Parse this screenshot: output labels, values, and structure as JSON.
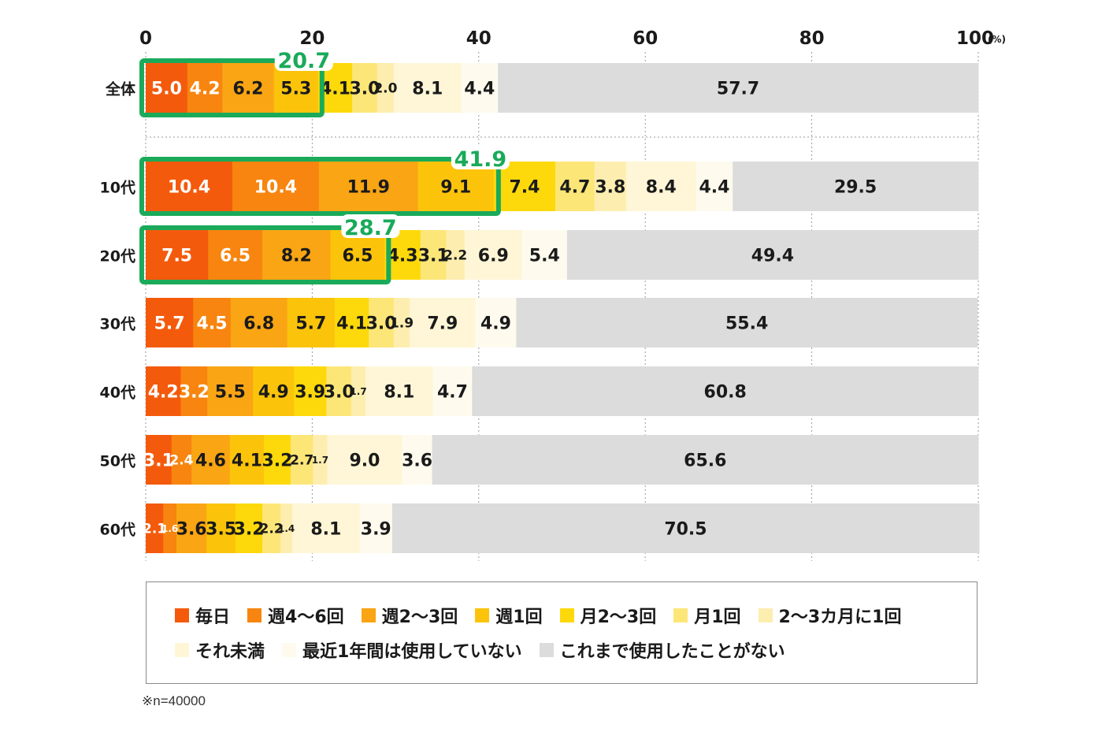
{
  "chart_data": {
    "type": "bar",
    "orientation": "horizontal",
    "stacked": true,
    "xlim": [
      0,
      100
    ],
    "x_ticks": [
      "0",
      "20",
      "40",
      "60",
      "80",
      "100"
    ],
    "x_unit": "(%)",
    "grid": true,
    "categories": [
      "全体",
      "10代",
      "20代",
      "30代",
      "40代",
      "50代",
      "60代"
    ],
    "series": [
      {
        "name": "毎日",
        "color": "#f45a0c",
        "values": [
          5.0,
          10.4,
          7.5,
          5.7,
          4.2,
          3.1,
          2.1
        ]
      },
      {
        "name": "週4～6回",
        "color": "#f7850f",
        "values": [
          4.2,
          10.4,
          6.5,
          4.5,
          3.2,
          2.4,
          1.6
        ]
      },
      {
        "name": "週2～3回",
        "color": "#f9a514",
        "values": [
          6.2,
          11.9,
          8.2,
          6.8,
          5.5,
          4.6,
          3.6
        ]
      },
      {
        "name": "週1回",
        "color": "#fbc40b",
        "values": [
          5.3,
          9.1,
          6.5,
          5.7,
          4.9,
          4.1,
          3.5
        ]
      },
      {
        "name": "月2～3回",
        "color": "#fdd90b",
        "values": [
          4.1,
          7.4,
          4.3,
          4.1,
          3.9,
          3.2,
          3.2
        ]
      },
      {
        "name": "月1回",
        "color": "#fde678",
        "values": [
          3.0,
          4.7,
          3.1,
          3.0,
          3.0,
          2.7,
          2.2
        ]
      },
      {
        "name": "2～3カ月に1回",
        "color": "#fdeeb0",
        "values": [
          2.0,
          3.8,
          2.2,
          1.9,
          1.7,
          1.7,
          1.4
        ]
      },
      {
        "name": "それ未満",
        "color": "#fef6d6",
        "values": [
          8.1,
          8.4,
          6.9,
          7.9,
          8.1,
          9.0,
          8.1
        ]
      },
      {
        "name": "最近1年間は使用していない",
        "color": "#fefbee",
        "values": [
          4.4,
          4.4,
          5.4,
          4.9,
          4.7,
          3.6,
          3.9
        ]
      },
      {
        "name": "これまで使用したことがない",
        "color": "#dcdcdc",
        "values": [
          57.7,
          29.5,
          49.4,
          55.4,
          60.8,
          65.6,
          70.5
        ]
      }
    ],
    "weekly_totals": {
      "highlight_color": "#1aaa5a",
      "rows": [
        {
          "category": "全体",
          "value": 20.7,
          "label": "20.7"
        },
        {
          "category": "10代",
          "value": 41.9,
          "label": "41.9"
        },
        {
          "category": "20代",
          "value": 28.7,
          "label": "28.7"
        }
      ]
    },
    "legend_position": "bottom",
    "note": "※n=40000"
  }
}
